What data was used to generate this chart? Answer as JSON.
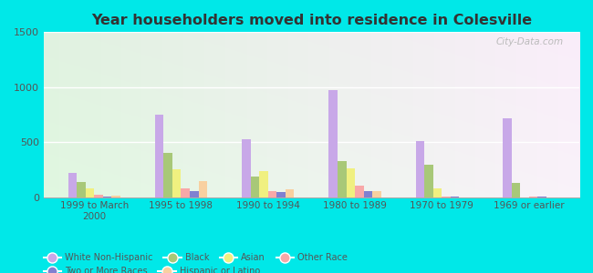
{
  "title": "Year householders moved into residence in Colesville",
  "categories": [
    "1999 to March\n2000",
    "1995 to 1998",
    "1990 to 1994",
    "1980 to 1989",
    "1970 to 1979",
    "1969 or earlier"
  ],
  "series": {
    "White Non-Hispanic": [
      220,
      750,
      530,
      970,
      510,
      720
    ],
    "Black": [
      140,
      400,
      190,
      330,
      295,
      130
    ],
    "Asian": [
      75,
      255,
      235,
      265,
      75,
      0
    ],
    "Other Race": [
      18,
      75,
      55,
      100,
      8,
      8
    ],
    "Two or More Races": [
      8,
      52,
      48,
      55,
      8,
      8
    ],
    "Hispanic or Latino": [
      12,
      145,
      68,
      55,
      0,
      0
    ]
  },
  "colors": {
    "White Non-Hispanic": "#c8a8e8",
    "Black": "#a8c878",
    "Asian": "#f0f080",
    "Other Race": "#f8a8a8",
    "Two or More Races": "#8080d0",
    "Hispanic or Latino": "#f8d0a0"
  },
  "ylim": [
    0,
    1500
  ],
  "yticks": [
    0,
    500,
    1000,
    1500
  ],
  "background_color": "#00e8e8",
  "watermark": "City-Data.com",
  "legend_items": [
    [
      "White Non-Hispanic",
      "#c8a8e8"
    ],
    [
      "Black",
      "#a8c878"
    ],
    [
      "Asian",
      "#f0f080"
    ],
    [
      "Other Race",
      "#f8a8a8"
    ],
    [
      "Two or More Races",
      "#8080d0"
    ],
    [
      "Hispanic or Latino",
      "#f8d0a0"
    ]
  ]
}
